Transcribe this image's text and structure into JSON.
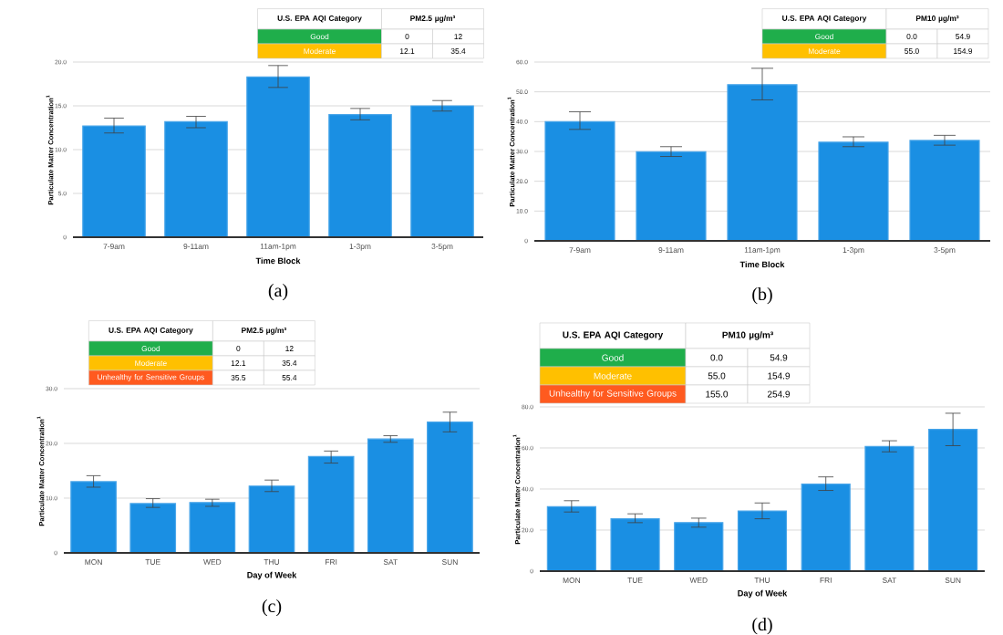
{
  "chart_data": [
    {
      "type": "bar",
      "xlabel": "Time Block",
      "ylabel": "Particulate Matter Concentration$^{1}$",
      "categories": [
        "7-9am",
        "9-11am",
        "11am-1pm",
        "1-3pm",
        "3-5pm"
      ],
      "color": "#1a8fe3",
      "values": [
        12.7,
        13.2,
        18.3,
        14.0,
        15.0
      ],
      "errors": [
        [
          11.9,
          13.6
        ],
        [
          12.5,
          13.8
        ],
        [
          17.1,
          19.6
        ],
        [
          13.4,
          14.7
        ],
        [
          14.4,
          15.6
        ]
      ],
      "ylim": [
        0,
        20
      ],
      "yticks": [
        0,
        {
          "value": 5,
          "label": "5.0"
        },
        {
          "value": 10,
          "label": "10.0"
        },
        {
          "value": 15,
          "label": "15.0"
        },
        {
          "value": 20,
          "label": "20.0"
        }
      ],
      "grid": "y",
      "annotations": [
        "(a)",
        "U.S. EPA AQI Category",
        "PM2.5 µg/m³",
        "Good",
        "0",
        "12",
        "Moderate",
        "12.1",
        "35.4"
      ]
    },
    {
      "type": "bar",
      "xlabel": "Time Block",
      "ylabel": "Particulate Matter Concentration$^{1}$",
      "categories": [
        "7-9am",
        "9-11am",
        "11am-1pm",
        "1-3pm",
        "3-5pm"
      ],
      "color": "#1a8fe3",
      "values": [
        40.0,
        29.9,
        52.4,
        33.1,
        33.7
      ],
      "errors": [
        [
          37.4,
          43.3
        ],
        [
          28.3,
          31.6
        ],
        [
          47.3,
          57.9
        ],
        [
          31.6,
          34.9
        ],
        [
          32.1,
          35.4
        ]
      ],
      "ylim": [
        0,
        60
      ],
      "yticks": [
        0,
        {
          "value": 10,
          "label": "10.0"
        },
        {
          "value": 20,
          "label": "20.0"
        },
        {
          "value": 30,
          "label": "30.0"
        },
        {
          "value": 40,
          "label": "40.0"
        },
        {
          "value": 50,
          "label": "50.0"
        },
        {
          "value": 60,
          "label": "60.0"
        }
      ],
      "grid": "y",
      "annotations": [
        "(b)",
        "U.S. EPA AQI Category",
        "PM10 µg/m³",
        "Good",
        "0.0",
        "54.9",
        "Moderate",
        "55.0",
        "154.9"
      ]
    },
    {
      "type": "bar",
      "xlabel": "Day of Week",
      "ylabel": "Particulate Matter Concentration$^{1}$",
      "categories": [
        "MON",
        "TUE",
        "WED",
        "THU",
        "FRI",
        "SAT",
        "SUN"
      ],
      "color": "#1a8fe3",
      "values": [
        13.0,
        9.0,
        9.2,
        12.2,
        17.6,
        20.8,
        23.9
      ],
      "errors": [
        [
          12.0,
          14.1
        ],
        [
          8.3,
          9.9
        ],
        [
          8.5,
          9.8
        ],
        [
          11.2,
          13.3
        ],
        [
          16.4,
          18.6
        ],
        [
          20.2,
          21.4
        ],
        [
          22.1,
          25.7
        ]
      ],
      "ylim": [
        0,
        30
      ],
      "yticks": [
        0,
        {
          "value": 10,
          "label": "10.0"
        },
        {
          "value": 20,
          "label": "20.0"
        },
        {
          "value": 30,
          "label": "30.0"
        }
      ],
      "grid": "y",
      "annotations": [
        "(c)",
        "U.S. EPA AQI Category",
        "PM2.5 µg/m³",
        "Good",
        "0",
        "12",
        "Moderate",
        "12.1",
        "35.4",
        "Unhealthy for Sensitive Groups",
        "35.5",
        "55.4"
      ]
    },
    {
      "type": "bar",
      "xlabel": "Day of Week",
      "ylabel": "Particulate Matter Concentration$^{1}$",
      "categories": [
        "MON",
        "TUE",
        "WED",
        "THU",
        "FRI",
        "SAT",
        "SUN"
      ],
      "color": "#1a8fe3",
      "values": [
        31.4,
        25.5,
        23.6,
        29.3,
        42.4,
        60.7,
        69.0
      ],
      "errors": [
        [
          28.8,
          34.3
        ],
        [
          23.6,
          27.9
        ],
        [
          21.4,
          25.8
        ],
        [
          25.5,
          33.2
        ],
        [
          39.3,
          45.9
        ],
        [
          58.1,
          63.5
        ],
        [
          61.1,
          76.9
        ]
      ],
      "ylim": [
        0,
        80
      ],
      "yticks": [
        0,
        {
          "value": 20,
          "label": "20.0"
        },
        {
          "value": 40,
          "label": "40.0"
        },
        {
          "value": 60,
          "label": "60.0"
        },
        {
          "value": 80,
          "label": "80.0"
        }
      ],
      "grid": "y",
      "annotations": [
        "(d)",
        "U.S. EPA AQI Category",
        "PM10 µg/m³",
        "Good",
        "0.0",
        "54.9",
        "Moderate",
        "55.0",
        "154.9",
        "Unhealthy for Sensitive Groups",
        "155.0",
        "254.9"
      ]
    }
  ]
}
